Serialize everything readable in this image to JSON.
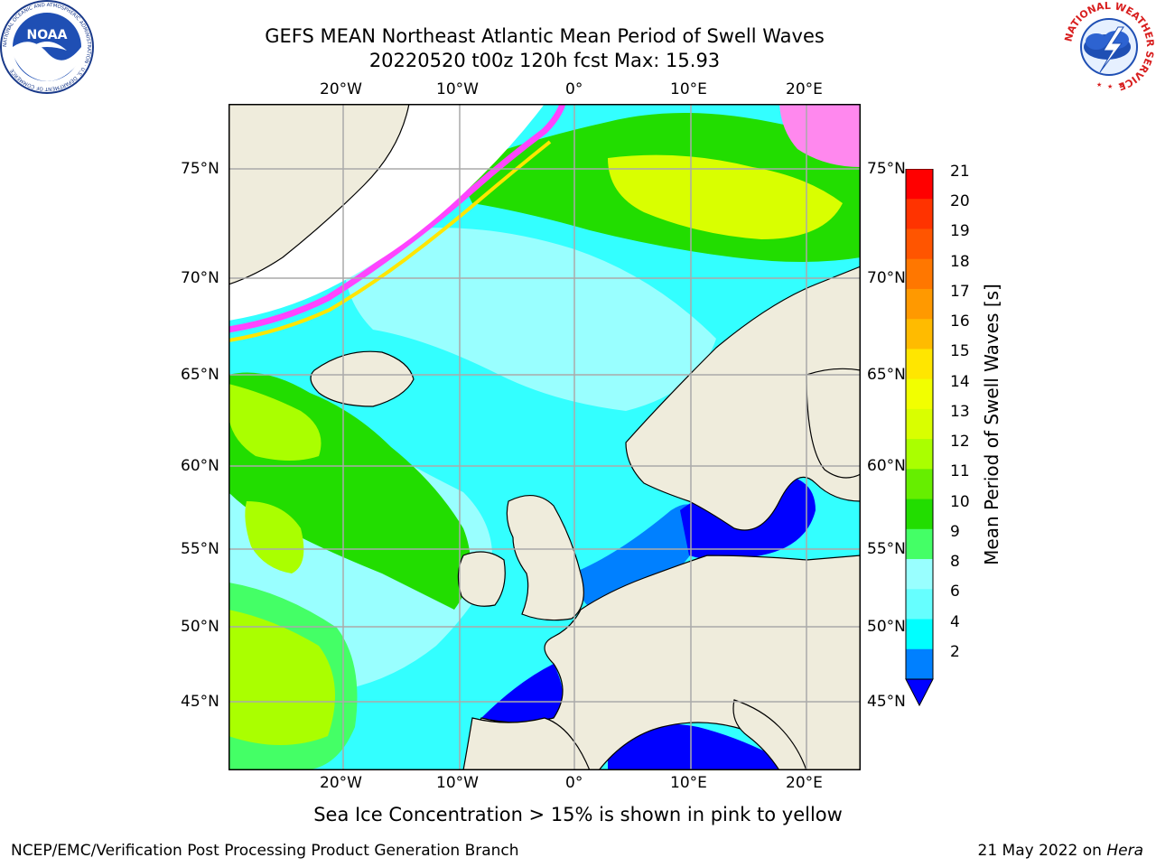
{
  "title": {
    "line1": "GEFS MEAN Northeast Atlantic Mean Period of Swell Waves",
    "line2": "20220520 t00z 120h fcst   Max: 15.93"
  },
  "map": {
    "lon_labels": [
      "20°W",
      "10°W",
      "0°",
      "10°E",
      "20°E"
    ],
    "lat_labels": [
      "75°N",
      "70°N",
      "65°N",
      "60°N",
      "55°N",
      "50°N",
      "45°N"
    ],
    "ocean_color": "#33ffff",
    "land_color": "#efecdc"
  },
  "colorbar": {
    "label": "Mean Period of Swell Waves [s]",
    "ticks": [
      "21",
      "20",
      "19",
      "18",
      "17",
      "16",
      "15",
      "14",
      "13",
      "12",
      "11",
      "10",
      "9",
      "8",
      "6",
      "4",
      "2"
    ],
    "colors": [
      "#ff0000",
      "#ff3300",
      "#ff5500",
      "#ff7700",
      "#ff9900",
      "#ffbb00",
      "#ffe600",
      "#f2ff00",
      "#d9ff00",
      "#aaff00",
      "#66ee00",
      "#22dd00",
      "#44ff66",
      "#99ffff",
      "#66ffff",
      "#00ffff",
      "#0080ff"
    ],
    "extend_color": "#0000ff"
  },
  "note": "Sea Ice Concentration > 15% is shown in pink to yellow",
  "footer": {
    "left": "NCEP/EMC/Verification Post Processing Product Generation Branch",
    "right_date": "21 May 2022 on ",
    "right_machine": "Hera"
  },
  "logos": {
    "noaa": "NOAA",
    "noaa_ring": "NATIONAL OCEANIC AND ATMOSPHERIC ADMINISTRATION · U.S. DEPARTMENT OF COMMERCE",
    "nws_ring": "NATIONAL WEATHER SERVICE"
  }
}
